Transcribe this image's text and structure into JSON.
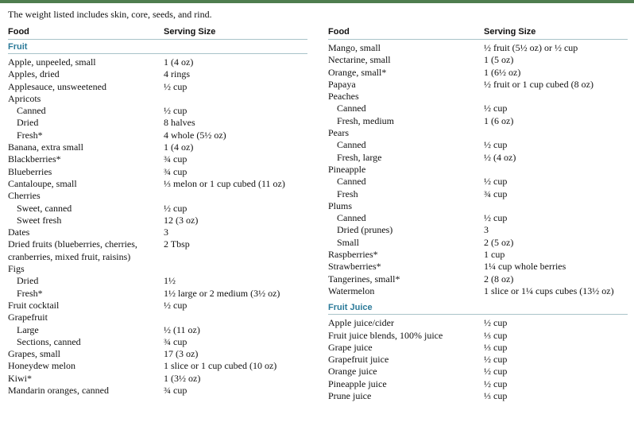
{
  "note": "The weight listed includes skin, core, seeds, and rind.",
  "columns": [
    {
      "headers": [
        "Food",
        "Serving Size"
      ],
      "sections": [
        {
          "title": "Fruit",
          "rows": [
            {
              "food": "Apple, unpeeled, small",
              "serving": "1 (4 oz)"
            },
            {
              "food": "Apples, dried",
              "serving": "4 rings"
            },
            {
              "food": "Applesauce, unsweetened",
              "serving": "½ cup"
            },
            {
              "food": "Apricots",
              "items": [
                {
                  "food": "Canned",
                  "serving": "½ cup"
                },
                {
                  "food": "Dried",
                  "serving": "8 halves"
                },
                {
                  "food": "Fresh*",
                  "serving": "4 whole (5½ oz)"
                }
              ]
            },
            {
              "food": "Banana, extra small",
              "serving": "1 (4 oz)"
            },
            {
              "food": "Blackberries*",
              "serving": "¾ cup"
            },
            {
              "food": "Blueberries",
              "serving": "¾ cup"
            },
            {
              "food": "Cantaloupe, small",
              "serving": "⅓ melon or 1 cup cubed (11 oz)"
            },
            {
              "food": "Cherries",
              "items": [
                {
                  "food": "Sweet, canned",
                  "serving": "½ cup"
                },
                {
                  "food": "Sweet fresh",
                  "serving": "12 (3 oz)"
                }
              ]
            },
            {
              "food": "Dates",
              "serving": "3"
            },
            {
              "food": "Dried fruits (blueberries, cherries, cranberries, mixed fruit, raisins)",
              "serving": "2 Tbsp"
            },
            {
              "food": "Figs",
              "items": [
                {
                  "food": "Dried",
                  "serving": "1½"
                },
                {
                  "food": "Fresh*",
                  "serving": "1½ large or 2 medium (3½ oz)"
                }
              ]
            },
            {
              "food": "Fruit cocktail",
              "serving": "½ cup"
            },
            {
              "food": "Grapefruit",
              "items": [
                {
                  "food": "Large",
                  "serving": "½ (11 oz)"
                },
                {
                  "food": "Sections, canned",
                  "serving": "¾ cup"
                }
              ]
            },
            {
              "food": "Grapes, small",
              "serving": "17 (3 oz)"
            },
            {
              "food": "Honeydew melon",
              "serving": "1 slice or 1 cup cubed (10 oz)"
            },
            {
              "food": "Kiwi*",
              "serving": "1 (3½ oz)"
            },
            {
              "food": "Mandarin oranges, canned",
              "serving": "¾ cup"
            }
          ]
        }
      ]
    },
    {
      "headers": [
        "Food",
        "Serving Size"
      ],
      "sections": [
        {
          "rows": [
            {
              "food": "Mango, small",
              "serving": "½ fruit (5½ oz) or ½ cup"
            },
            {
              "food": "Nectarine, small",
              "serving": "1 (5 oz)"
            },
            {
              "food": "Orange, small*",
              "serving": "1 (6½ oz)"
            },
            {
              "food": "Papaya",
              "serving": "½ fruit or 1 cup cubed (8 oz)"
            },
            {
              "food": "Peaches",
              "items": [
                {
                  "food": "Canned",
                  "serving": "½ cup"
                },
                {
                  "food": "Fresh, medium",
                  "serving": "1 (6 oz)"
                }
              ]
            },
            {
              "food": "Pears",
              "items": [
                {
                  "food": "Canned",
                  "serving": "½ cup"
                },
                {
                  "food": "Fresh, large",
                  "serving": "½ (4 oz)"
                }
              ]
            },
            {
              "food": "Pineapple",
              "items": [
                {
                  "food": "Canned",
                  "serving": "½ cup"
                },
                {
                  "food": "Fresh",
                  "serving": "¾ cup"
                }
              ]
            },
            {
              "food": "Plums",
              "items": [
                {
                  "food": "Canned",
                  "serving": "½ cup"
                },
                {
                  "food": "Dried (prunes)",
                  "serving": "3"
                },
                {
                  "food": "Small",
                  "serving": "2 (5 oz)"
                }
              ]
            },
            {
              "food": "Raspberries*",
              "serving": "1 cup"
            },
            {
              "food": "Strawberries*",
              "serving": "1¼ cup whole berries"
            },
            {
              "food": "Tangerines, small*",
              "serving": "2 (8 oz)"
            },
            {
              "food": "Watermelon",
              "serving": "1 slice or 1¼ cups cubes (13½ oz)"
            }
          ]
        },
        {
          "title": "Fruit Juice",
          "rows": [
            {
              "food": "Apple juice/cider",
              "serving": "½ cup"
            },
            {
              "food": "Fruit juice blends, 100% juice",
              "serving": "⅓ cup"
            },
            {
              "food": "Grape juice",
              "serving": "⅓ cup"
            },
            {
              "food": "Grapefruit juice",
              "serving": "½ cup"
            },
            {
              "food": "Orange juice",
              "serving": "½ cup"
            },
            {
              "food": "Pineapple juice",
              "serving": "½ cup"
            },
            {
              "food": "Prune juice",
              "serving": "⅓ cup"
            }
          ]
        }
      ]
    }
  ]
}
